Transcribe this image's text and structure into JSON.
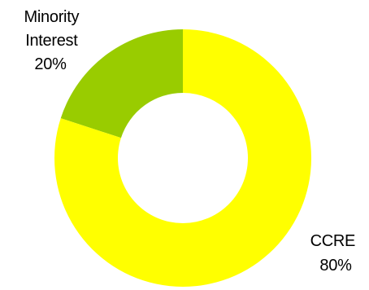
{
  "chart_data": {
    "type": "pie",
    "style": "donut",
    "title": "",
    "slices": [
      {
        "label_lines": [
          "Minority",
          "Interest",
          "20%"
        ],
        "label": "Minority Interest",
        "value": 20,
        "color": "#99cc00"
      },
      {
        "label_lines": [
          "CCRE",
          "80%"
        ],
        "label": "CCRE",
        "value": 80,
        "color": "#ffff00"
      }
    ],
    "legend": "none"
  }
}
